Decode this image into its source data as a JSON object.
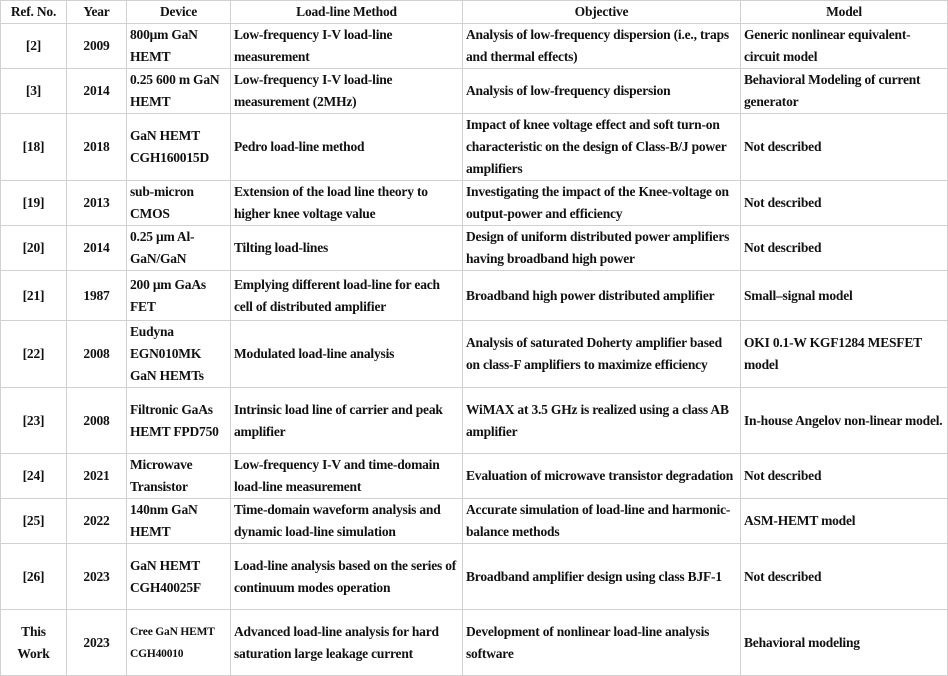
{
  "headers": [
    "Ref. No.",
    "Year",
    "Device",
    "Load-line Method",
    "Objective",
    "Model"
  ],
  "rows": [
    {
      "ref": "[2]",
      "year": "2009",
      "device": "800μm GaN HEMT",
      "method": "Low-frequency I-V load-line measurement",
      "objective": "Analysis of low-frequency dispersion (i.e., traps and thermal effects)",
      "model": "Generic nonlinear equivalent-circuit model"
    },
    {
      "ref": "[3]",
      "year": "2014",
      "device": "0.25 600 m GaN HEMT",
      "method": "Low-frequency I-V load-line measurement (2MHz)",
      "objective": "Analysis of low-frequency dispersion",
      "model": "Behavioral Modeling of current generator"
    },
    {
      "ref": "[18]",
      "year": "2018",
      "device": "GaN HEMT CGH160015D",
      "method": "Pedro load-line method",
      "objective": "Impact of knee voltage effect and soft turn-on characteristic on the design of Class-B/J power amplifiers",
      "model": "Not described"
    },
    {
      "ref": "[19]",
      "year": "2013",
      "device": "sub-micron CMOS",
      "method": "Extension of the load line theory to higher knee voltage value",
      "objective": "Investigating the impact of the Knee-voltage on output-power and efficiency",
      "model": "Not described"
    },
    {
      "ref": "[20]",
      "year": "2014",
      "device": "0.25 μm Al-GaN/GaN",
      "method": "Tilting load-lines",
      "objective": "Design of uniform distributed power amplifiers having broadband high power",
      "model": "Not described"
    },
    {
      "ref": "[21]",
      "year": "1987",
      "device": "200 μm GaAs FET",
      "method": "Emplying different load-line for each cell of distributed amplifier",
      "objective": "Broadband high power distributed amplifier",
      "model": "Small–signal model"
    },
    {
      "ref": "[22]",
      "year": "2008",
      "device": "Eudyna EGN010MK GaN HEMTs",
      "method": "Modulated load-line analysis",
      "objective": "Analysis of saturated Doherty amplifier based on class-F amplifiers to maximize efficiency",
      "model": "OKI 0.1-W KGF1284 MESFET model"
    },
    {
      "ref": "[23]",
      "year": "2008",
      "device": "Filtronic GaAs HEMT FPD750",
      "method": "Intrinsic load line of carrier and peak amplifier",
      "objective": "WiMAX at 3.5 GHz is realized using a class AB amplifier",
      "model": "In-house Angelov non-linear model."
    },
    {
      "ref": "[24]",
      "year": "2021",
      "device": "Microwave Transistor",
      "method": "Low-frequency I-V and time-domain load-line measurement",
      "objective": "Evaluation of microwave transistor degradation",
      "model": "Not described"
    },
    {
      "ref": "[25]",
      "year": "2022",
      "device": "140nm GaN HEMT",
      "method": "Time-domain waveform analysis and dynamic load-line simulation",
      "objective": "Accurate simulation of load-line  and harmonic-balance methods",
      "model": "ASM-HEMT model"
    },
    {
      "ref": "[26]",
      "year": "2023",
      "device": "GaN HEMT CGH40025F",
      "method": "Load-line analysis based on the series of continuum modes operation",
      "objective": "Broadband amplifier design using class BJF-1",
      "model": "Not described"
    },
    {
      "ref": "This Work",
      "year": "2023",
      "device": "Cree GaN HEMT CGH40010",
      "method": "Advanced load-line analysis for hard saturation large leakage current",
      "objective": "Development of nonlinear load-line analysis software",
      "model": "Behavioral modeling"
    }
  ]
}
